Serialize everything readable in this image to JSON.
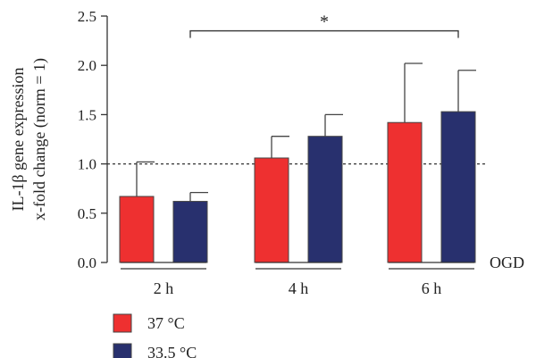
{
  "chart_data": {
    "type": "bar",
    "ylabel_line1": "IL-1β gene expression",
    "ylabel_line2": "x-fold change (norm = 1)",
    "ylim": [
      0,
      2.5
    ],
    "yticks": [
      0.0,
      0.5,
      1.0,
      1.5,
      2.0,
      2.5
    ],
    "ytick_labels": [
      "0.0",
      "0.5",
      "1.0",
      "1.5",
      "2.0",
      "2.5"
    ],
    "categories": [
      "2 h",
      "4 h",
      "6 h"
    ],
    "category_axis_label": "OGD",
    "reference_line": 1.0,
    "series": [
      {
        "name": "37 °C",
        "color": "#ee3030",
        "values": [
          0.67,
          1.06,
          1.42
        ],
        "errors": [
          0.35,
          0.22,
          0.6
        ]
      },
      {
        "name": "33.5 °C",
        "color": "#28306e",
        "values": [
          0.62,
          1.28,
          1.53
        ],
        "errors": [
          0.09,
          0.22,
          0.42
        ]
      }
    ],
    "significance": {
      "from_category": 0,
      "to_category": 2,
      "label": "*",
      "y": 2.35
    },
    "legend_position": "bottom-left"
  }
}
